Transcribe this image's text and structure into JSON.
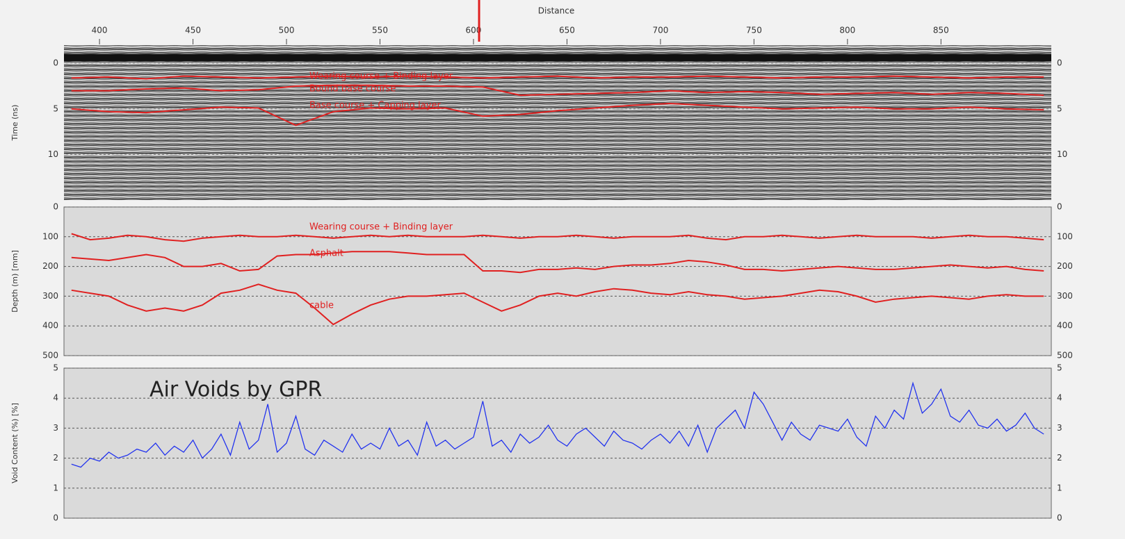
{
  "chart_data": [
    {
      "type": "line",
      "x_label": "Distance",
      "y_label": "Time (ns)",
      "xlim": [
        381,
        909
      ],
      "xticks": [
        400,
        450,
        500,
        550,
        600,
        650,
        700,
        750,
        800,
        850
      ],
      "ylim": [
        -2,
        15
      ],
      "y_inverted": true,
      "yticks": [
        0,
        5,
        10
      ],
      "grid": true,
      "cursor": 603,
      "x": [
        385,
        405,
        425,
        445,
        465,
        485,
        505,
        525,
        545,
        565,
        585,
        605,
        625,
        645,
        665,
        685,
        705,
        725,
        745,
        765,
        785,
        805,
        825,
        845,
        865,
        885,
        905
      ],
      "series": [
        {
          "name": "Wearing course + Binding layer",
          "color": "#e02020",
          "values": [
            1.6,
            1.5,
            1.7,
            1.4,
            1.5,
            1.6,
            1.5,
            1.4,
            1.5,
            1.4,
            1.5,
            1.6,
            1.5,
            1.4,
            1.6,
            1.5,
            1.5,
            1.4,
            1.5,
            1.6,
            1.5,
            1.5,
            1.4,
            1.5,
            1.6,
            1.5,
            1.5
          ]
        },
        {
          "name": "Bound base course",
          "color": "#e02020",
          "values": [
            3.0,
            3.0,
            2.8,
            2.7,
            3.0,
            2.9,
            2.5,
            2.4,
            2.4,
            2.5,
            2.5,
            2.6,
            3.5,
            3.4,
            3.3,
            3.2,
            3.0,
            3.2,
            3.1,
            3.2,
            3.4,
            3.3,
            3.2,
            3.4,
            3.2,
            3.3,
            3.5
          ]
        },
        {
          "name": "Base course + Capping layer",
          "color": "#e02020",
          "values": [
            5.0,
            5.3,
            5.4,
            5.1,
            4.8,
            4.9,
            6.8,
            5.3,
            4.9,
            5.0,
            4.9,
            5.8,
            5.6,
            5.2,
            4.9,
            4.6,
            4.4,
            4.6,
            4.8,
            5.0,
            4.9,
            4.8,
            5.0,
            5.0,
            4.8,
            5.0,
            5.1
          ]
        }
      ]
    },
    {
      "type": "line",
      "y_label": "Depth (m) [mm]",
      "ylim": [
        0,
        500
      ],
      "y_inverted": true,
      "yticks": [
        0,
        100,
        200,
        300,
        400,
        500
      ],
      "grid": true,
      "x": [
        385,
        395,
        405,
        415,
        425,
        435,
        445,
        455,
        465,
        475,
        485,
        495,
        505,
        515,
        525,
        535,
        545,
        555,
        565,
        575,
        585,
        595,
        605,
        615,
        625,
        635,
        645,
        655,
        665,
        675,
        685,
        695,
        705,
        715,
        725,
        735,
        745,
        755,
        765,
        775,
        785,
        795,
        805,
        815,
        825,
        835,
        845,
        855,
        865,
        875,
        885,
        895,
        905
      ],
      "series": [
        {
          "name": "Wearing course + Binding layer",
          "color": "#e02020",
          "values": [
            90,
            110,
            105,
            95,
            100,
            110,
            115,
            105,
            100,
            95,
            100,
            100,
            95,
            100,
            105,
            100,
            95,
            100,
            95,
            100,
            100,
            100,
            95,
            100,
            105,
            100,
            100,
            95,
            100,
            105,
            100,
            100,
            100,
            95,
            105,
            110,
            100,
            100,
            95,
            100,
            105,
            100,
            95,
            100,
            100,
            100,
            105,
            100,
            95,
            100,
            100,
            105,
            110
          ]
        },
        {
          "name": "Asphalt",
          "color": "#e02020",
          "values": [
            170,
            175,
            180,
            170,
            160,
            170,
            200,
            200,
            190,
            215,
            210,
            165,
            160,
            160,
            155,
            150,
            150,
            150,
            155,
            160,
            160,
            160,
            215,
            215,
            220,
            210,
            210,
            205,
            210,
            200,
            195,
            195,
            190,
            180,
            185,
            195,
            210,
            210,
            215,
            210,
            205,
            200,
            205,
            210,
            210,
            205,
            200,
            195,
            200,
            205,
            200,
            210,
            215
          ]
        },
        {
          "name": "cable",
          "color": "#e02020",
          "values": [
            280,
            290,
            300,
            330,
            350,
            340,
            350,
            330,
            290,
            280,
            260,
            280,
            290,
            340,
            395,
            360,
            330,
            310,
            300,
            300,
            295,
            290,
            320,
            350,
            330,
            300,
            290,
            300,
            285,
            275,
            280,
            290,
            295,
            285,
            295,
            300,
            310,
            305,
            300,
            290,
            280,
            285,
            300,
            320,
            310,
            305,
            300,
            305,
            310,
            300,
            295,
            300,
            300
          ]
        }
      ]
    },
    {
      "type": "line",
      "y_label": "Void Content (%) [%]",
      "annotation": "Air Voids by GPR",
      "ylim": [
        0,
        5
      ],
      "yticks": [
        0,
        1,
        2,
        3,
        4,
        5
      ],
      "grid": true,
      "x": [
        385,
        390,
        395,
        400,
        405,
        410,
        415,
        420,
        425,
        430,
        435,
        440,
        445,
        450,
        455,
        460,
        465,
        470,
        475,
        480,
        485,
        490,
        495,
        500,
        505,
        510,
        515,
        520,
        525,
        530,
        535,
        540,
        545,
        550,
        555,
        560,
        565,
        570,
        575,
        580,
        585,
        590,
        595,
        600,
        605,
        610,
        615,
        620,
        625,
        630,
        635,
        640,
        645,
        650,
        655,
        660,
        665,
        670,
        675,
        680,
        685,
        690,
        695,
        700,
        705,
        710,
        715,
        720,
        725,
        730,
        735,
        740,
        745,
        750,
        755,
        760,
        765,
        770,
        775,
        780,
        785,
        790,
        795,
        800,
        805,
        810,
        815,
        820,
        825,
        830,
        835,
        840,
        845,
        850,
        855,
        860,
        865,
        870,
        875,
        880,
        885,
        890,
        895,
        900,
        905
      ],
      "series": [
        {
          "color": "#2233ee",
          "values": [
            1.8,
            1.7,
            2.0,
            1.9,
            2.2,
            2.0,
            2.1,
            2.3,
            2.2,
            2.5,
            2.1,
            2.4,
            2.2,
            2.6,
            2.0,
            2.3,
            2.8,
            2.1,
            3.2,
            2.3,
            2.6,
            3.8,
            2.2,
            2.5,
            3.4,
            2.3,
            2.1,
            2.6,
            2.4,
            2.2,
            2.8,
            2.3,
            2.5,
            2.3,
            3.0,
            2.4,
            2.6,
            2.1,
            3.2,
            2.4,
            2.6,
            2.3,
            2.5,
            2.7,
            3.9,
            2.4,
            2.6,
            2.2,
            2.8,
            2.5,
            2.7,
            3.1,
            2.6,
            2.4,
            2.8,
            3.0,
            2.7,
            2.4,
            2.9,
            2.6,
            2.5,
            2.3,
            2.6,
            2.8,
            2.5,
            2.9,
            2.4,
            3.1,
            2.2,
            3.0,
            3.3,
            3.6,
            3.0,
            4.2,
            3.8,
            3.2,
            2.6,
            3.2,
            2.8,
            2.6,
            3.1,
            3.0,
            2.9,
            3.3,
            2.7,
            2.4,
            3.4,
            3.0,
            3.6,
            3.3,
            4.5,
            3.5,
            3.8,
            4.3,
            3.4,
            3.2,
            3.6,
            3.1,
            3.0,
            3.3,
            2.9,
            3.1,
            3.5,
            3.0,
            2.8
          ]
        }
      ]
    }
  ]
}
